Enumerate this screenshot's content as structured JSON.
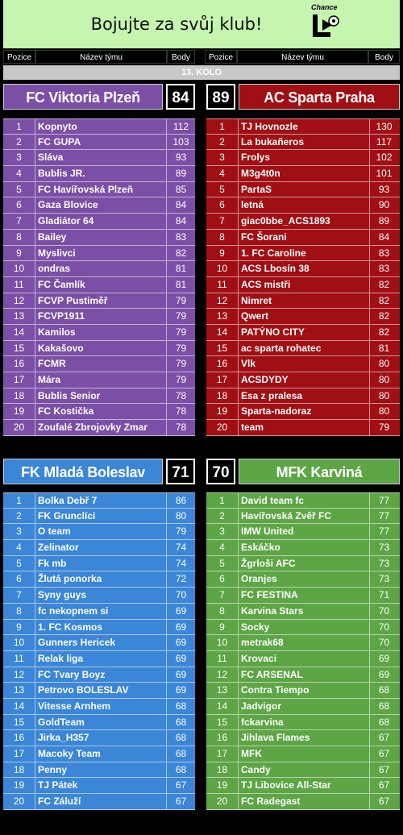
{
  "banner": {
    "title": "Bojujte za svůj klub!",
    "logo_text": "Chance"
  },
  "headers": {
    "pos": "Pozice",
    "team": "Název týmu",
    "pts": "Body"
  },
  "round": "13. KOLO",
  "colors": {
    "viktoria": "#7b4fa6",
    "sparta": "#a00f14",
    "boleslav": "#3b86d6",
    "karvina": "#5da545"
  },
  "matches": [
    {
      "left": {
        "name": "FC Viktoria Plzeň",
        "score": "84"
      },
      "right": {
        "name": "AC Sparta Praha",
        "score": "89"
      }
    },
    {
      "left": {
        "name": "FK Mladá Boleslav",
        "score": "71"
      },
      "right": {
        "name": "MFK Karviná",
        "score": "70"
      }
    }
  ],
  "tables": {
    "viktoria": [
      {
        "pos": "1",
        "name": "Kopnyto",
        "pts": "112"
      },
      {
        "pos": "2",
        "name": "FC GUPA",
        "pts": "103"
      },
      {
        "pos": "3",
        "name": "Sláva",
        "pts": "93"
      },
      {
        "pos": "4",
        "name": "Bublis JR.",
        "pts": "89"
      },
      {
        "pos": "5",
        "name": "FC Havířovská Plzeň",
        "pts": "85"
      },
      {
        "pos": "6",
        "name": "Gaza Blovice",
        "pts": "84"
      },
      {
        "pos": "7",
        "name": "Gladiátor 64",
        "pts": "84"
      },
      {
        "pos": "8",
        "name": "Bailey",
        "pts": "83"
      },
      {
        "pos": "9",
        "name": "Myslivci",
        "pts": "82"
      },
      {
        "pos": "10",
        "name": "ondras",
        "pts": "81"
      },
      {
        "pos": "11",
        "name": "FC Čamlík",
        "pts": "81"
      },
      {
        "pos": "12",
        "name": "FCVP Pustiměř",
        "pts": "79"
      },
      {
        "pos": "13",
        "name": "FCVP1911",
        "pts": "79"
      },
      {
        "pos": "14",
        "name": "Kamilos",
        "pts": "79"
      },
      {
        "pos": "15",
        "name": "Kakašovo",
        "pts": "79"
      },
      {
        "pos": "16",
        "name": "FCMR",
        "pts": "79"
      },
      {
        "pos": "17",
        "name": "Mára",
        "pts": "79"
      },
      {
        "pos": "18",
        "name": "Bublis Senior",
        "pts": "78"
      },
      {
        "pos": "19",
        "name": "FC Kostička",
        "pts": "78"
      },
      {
        "pos": "20",
        "name": "Zoufalé Zbrojovky Zmar",
        "pts": "78"
      }
    ],
    "sparta": [
      {
        "pos": "1",
        "name": "TJ Hovnozle",
        "pts": "130"
      },
      {
        "pos": "2",
        "name": "La bukañeros",
        "pts": "117"
      },
      {
        "pos": "3",
        "name": "Frolys",
        "pts": "102"
      },
      {
        "pos": "4",
        "name": "M3g4t0n",
        "pts": "101"
      },
      {
        "pos": "5",
        "name": "PartaS",
        "pts": "93"
      },
      {
        "pos": "6",
        "name": "letná",
        "pts": "90"
      },
      {
        "pos": "7",
        "name": "giac0bbe_ACS1893",
        "pts": "89"
      },
      {
        "pos": "8",
        "name": "FC Šorani",
        "pts": "84"
      },
      {
        "pos": "9",
        "name": "1. FC Caroline",
        "pts": "83"
      },
      {
        "pos": "10",
        "name": "ACS Lbosín 38",
        "pts": "83"
      },
      {
        "pos": "11",
        "name": "ACS mistři",
        "pts": "82"
      },
      {
        "pos": "12",
        "name": "Nimret",
        "pts": "82"
      },
      {
        "pos": "13",
        "name": "Qwert",
        "pts": "82"
      },
      {
        "pos": "14",
        "name": "PATÝNO CITY",
        "pts": "82"
      },
      {
        "pos": "15",
        "name": "ac sparta rohatec",
        "pts": "81"
      },
      {
        "pos": "16",
        "name": "Vlk",
        "pts": "80"
      },
      {
        "pos": "17",
        "name": "ACSDYDY",
        "pts": "80"
      },
      {
        "pos": "18",
        "name": "Esa z pralesa",
        "pts": "80"
      },
      {
        "pos": "19",
        "name": "Sparta-nadoraz",
        "pts": "80"
      },
      {
        "pos": "20",
        "name": "team",
        "pts": "79"
      }
    ],
    "boleslav": [
      {
        "pos": "1",
        "name": "Bolka Debř 7",
        "pts": "86"
      },
      {
        "pos": "2",
        "name": "FK Grunclíci",
        "pts": "80"
      },
      {
        "pos": "3",
        "name": "O team",
        "pts": "79"
      },
      {
        "pos": "4",
        "name": "Zelinator",
        "pts": "74"
      },
      {
        "pos": "5",
        "name": "Fk mb",
        "pts": "74"
      },
      {
        "pos": "6",
        "name": "Žlutá ponorka",
        "pts": "72"
      },
      {
        "pos": "7",
        "name": "Syny guys",
        "pts": "70"
      },
      {
        "pos": "8",
        "name": "fc nekopnem si",
        "pts": "69"
      },
      {
        "pos": "9",
        "name": "1. FC Kosmos",
        "pts": "69"
      },
      {
        "pos": "10",
        "name": "Gunners Hericek",
        "pts": "69"
      },
      {
        "pos": "11",
        "name": "Relak liga",
        "pts": "69"
      },
      {
        "pos": "12",
        "name": "FC Tvary Boyz",
        "pts": "69"
      },
      {
        "pos": "13",
        "name": "Petrovo BOLESLAV",
        "pts": "69"
      },
      {
        "pos": "14",
        "name": "Vitesse Arnhem",
        "pts": "68"
      },
      {
        "pos": "15",
        "name": "GoldTeam",
        "pts": "68"
      },
      {
        "pos": "16",
        "name": "Jirka_H357",
        "pts": "68"
      },
      {
        "pos": "17",
        "name": "Macoky Team",
        "pts": "68"
      },
      {
        "pos": "18",
        "name": "Penny",
        "pts": "68"
      },
      {
        "pos": "19",
        "name": "TJ Pátek",
        "pts": "67"
      },
      {
        "pos": "20",
        "name": "FC Záluží",
        "pts": "67"
      }
    ],
    "karvina": [
      {
        "pos": "1",
        "name": "David team fc",
        "pts": "77"
      },
      {
        "pos": "2",
        "name": "Havířovská Zvěř FC",
        "pts": "77"
      },
      {
        "pos": "3",
        "name": "IMW United",
        "pts": "77"
      },
      {
        "pos": "4",
        "name": "Eskáčko",
        "pts": "73"
      },
      {
        "pos": "5",
        "name": "Žgrloši AFC",
        "pts": "73"
      },
      {
        "pos": "6",
        "name": "Oranjes",
        "pts": "73"
      },
      {
        "pos": "7",
        "name": "FC FESTINA",
        "pts": "71"
      },
      {
        "pos": "8",
        "name": "Karvina Stars",
        "pts": "70"
      },
      {
        "pos": "9",
        "name": "Socky",
        "pts": "70"
      },
      {
        "pos": "10",
        "name": "metrak68",
        "pts": "70"
      },
      {
        "pos": "11",
        "name": "Krovaci",
        "pts": "69"
      },
      {
        "pos": "12",
        "name": "FC ARSENAL",
        "pts": "69"
      },
      {
        "pos": "13",
        "name": "Contra Tiempo",
        "pts": "68"
      },
      {
        "pos": "14",
        "name": "Jadvigor",
        "pts": "68"
      },
      {
        "pos": "15",
        "name": "fckarvina",
        "pts": "68"
      },
      {
        "pos": "16",
        "name": "Jihlava Flames",
        "pts": "67"
      },
      {
        "pos": "17",
        "name": "MFK",
        "pts": "67"
      },
      {
        "pos": "18",
        "name": "Candy",
        "pts": "67"
      },
      {
        "pos": "19",
        "name": "TJ Libovice All-Star",
        "pts": "67"
      },
      {
        "pos": "20",
        "name": "FC Radegast",
        "pts": "67"
      }
    ]
  }
}
